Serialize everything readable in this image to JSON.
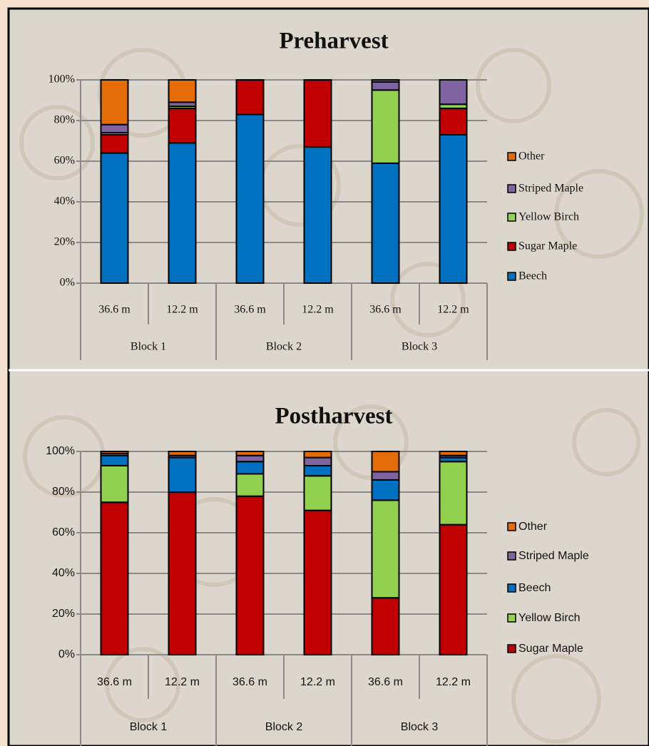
{
  "chart_data": [
    {
      "type": "stacked_bar",
      "title": "Preharvest",
      "categories": [
        "36.6 m",
        "12.2 m",
        "36.6 m",
        "12.2 m",
        "36.6 m",
        "12.2 m"
      ],
      "groups": [
        "Block 1",
        "Block 2",
        "Block 3"
      ],
      "ylim": [
        0,
        100
      ],
      "yticks": [
        {
          "value": 0,
          "label": "0%"
        },
        {
          "value": 20,
          "label": "20%"
        },
        {
          "value": 40,
          "label": "40%"
        },
        {
          "value": 60,
          "label": "60%"
        },
        {
          "value": 80,
          "label": "80%"
        },
        {
          "value": 100,
          "label": "100%"
        }
      ],
      "grid": true,
      "legend": "right",
      "series": [
        {
          "name": "Beech",
          "color": "#0070c0",
          "values": [
            64,
            69,
            83,
            67,
            59,
            73
          ]
        },
        {
          "name": "Sugar Maple",
          "color": "#c00000",
          "values": [
            9,
            17,
            17,
            33,
            0,
            13
          ]
        },
        {
          "name": "Yellow Birch",
          "color": "#92d050",
          "values": [
            1,
            1,
            0,
            0,
            36,
            2
          ]
        },
        {
          "name": "Striped Maple",
          "color": "#8064a2",
          "values": [
            4,
            2,
            0,
            0,
            4,
            12
          ]
        },
        {
          "name": "Other",
          "color": "#e36c09",
          "values": [
            22,
            11,
            0,
            0,
            1,
            0
          ]
        }
      ]
    },
    {
      "type": "stacked_bar",
      "title": "Postharvest",
      "categories": [
        "36.6 m",
        "12.2 m",
        "36.6 m",
        "12.2 m",
        "36.6 m",
        "12.2 m"
      ],
      "groups": [
        "Block 1",
        "Block 2",
        "Block 3"
      ],
      "ylim": [
        0,
        100
      ],
      "yticks": [
        {
          "value": 0,
          "label": "0%"
        },
        {
          "value": 20,
          "label": "20%"
        },
        {
          "value": 40,
          "label": "40%"
        },
        {
          "value": 60,
          "label": "60%"
        },
        {
          "value": 80,
          "label": "80%"
        },
        {
          "value": 100,
          "label": "100%"
        }
      ],
      "grid": true,
      "legend": "right",
      "series": [
        {
          "name": "Sugar Maple",
          "color": "#c00000",
          "values": [
            75,
            80,
            78,
            71,
            28,
            64
          ]
        },
        {
          "name": "Yellow Birch",
          "color": "#92d050",
          "values": [
            18,
            0,
            11,
            17,
            48,
            31
          ]
        },
        {
          "name": "Beech",
          "color": "#0070c0",
          "values": [
            5,
            17,
            6,
            5,
            10,
            2
          ]
        },
        {
          "name": "Striped Maple",
          "color": "#8064a2",
          "values": [
            1,
            1,
            3,
            4,
            4,
            1
          ]
        },
        {
          "name": "Other",
          "color": "#e36c09",
          "values": [
            1,
            2,
            2,
            3,
            10,
            2
          ]
        }
      ]
    }
  ]
}
